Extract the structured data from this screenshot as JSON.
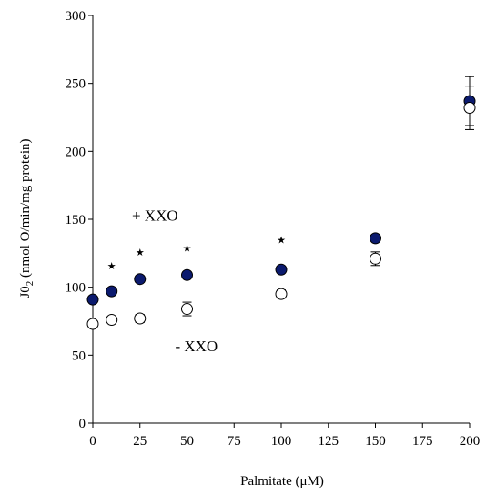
{
  "chart_data": {
    "type": "scatter",
    "xlabel": "Palmitate (μM)",
    "ylabel_main": "J0",
    "ylabel_sub": "2",
    "ylabel_rest": " (nmol O/min/mg protein)",
    "xlim": [
      0,
      200
    ],
    "ylim": [
      0,
      300
    ],
    "xticks": [
      0,
      25,
      50,
      75,
      100,
      125,
      150,
      175,
      200
    ],
    "yticks": [
      0,
      50,
      100,
      150,
      200,
      250,
      300
    ],
    "grid": false,
    "legend": "none",
    "series": [
      {
        "label": "+ XXO",
        "marker": "filled-circle",
        "color": "#0b1a6e",
        "points": [
          {
            "x": 0,
            "y": 91,
            "err": 0
          },
          {
            "x": 10,
            "y": 97,
            "err": 2
          },
          {
            "x": 25,
            "y": 106,
            "err": 2
          },
          {
            "x": 50,
            "y": 109,
            "err": 2
          },
          {
            "x": 100,
            "y": 113,
            "err": 2
          },
          {
            "x": 150,
            "y": 136,
            "err": 2
          },
          {
            "x": 200,
            "y": 237,
            "err": 18
          }
        ]
      },
      {
        "label": "- XXO",
        "marker": "open-circle",
        "color": "#000000",
        "points": [
          {
            "x": 0,
            "y": 73,
            "err": 0
          },
          {
            "x": 10,
            "y": 76,
            "err": 2
          },
          {
            "x": 25,
            "y": 77,
            "err": 3
          },
          {
            "x": 50,
            "y": 84,
            "err": 5
          },
          {
            "x": 100,
            "y": 95,
            "err": 3
          },
          {
            "x": 150,
            "y": 121,
            "err": 5
          },
          {
            "x": 200,
            "y": 232,
            "err": 16
          }
        ]
      }
    ],
    "annotations": [
      {
        "text": "+ XXO",
        "x": 33,
        "y": 153
      },
      {
        "text": "- XXO",
        "x": 55,
        "y": 57
      }
    ],
    "significance_markers": [
      {
        "symbol": "★",
        "x": 10,
        "y": 116
      },
      {
        "symbol": "★",
        "x": 25,
        "y": 126
      },
      {
        "symbol": "★",
        "x": 50,
        "y": 129
      },
      {
        "symbol": "★",
        "x": 100,
        "y": 135
      }
    ]
  }
}
